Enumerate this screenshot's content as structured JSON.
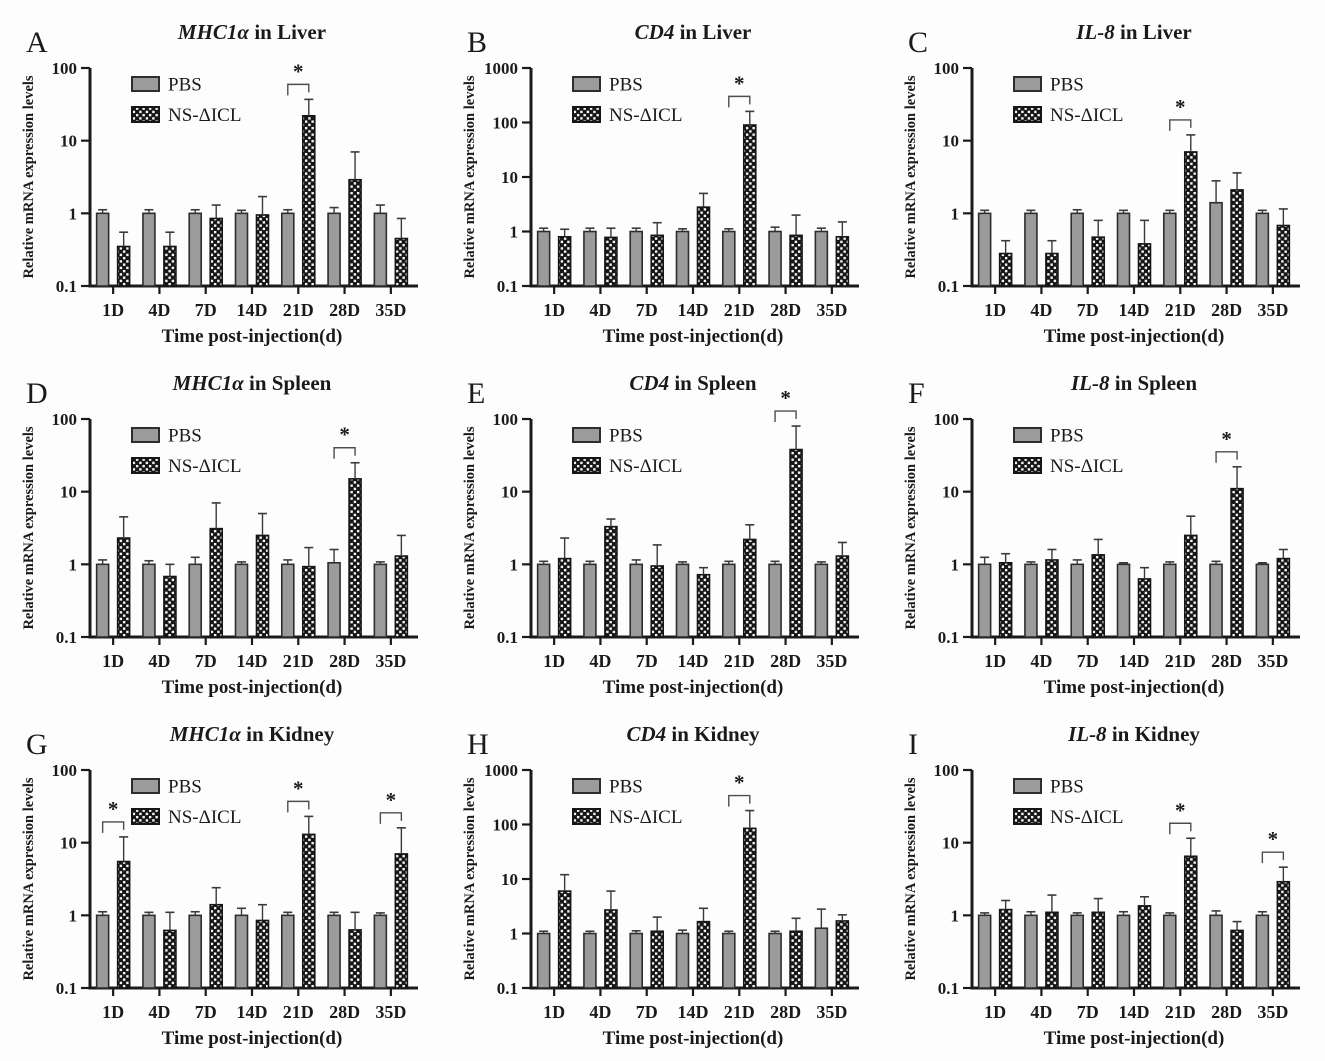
{
  "page": {
    "background": "#fdfdfd"
  },
  "colors": {
    "pbs_fill": "#9b9b9b",
    "pbs_stroke": "#2d2d2d",
    "ns_fill": "#161616",
    "ns_dot": "#f5f5f5",
    "axis": "#1a1a1a",
    "error_bar": "#3a3a3a",
    "sig": "#4d4d4d"
  },
  "chart_defaults": {
    "xlabel": "Time post-injection(d)",
    "ylabel": "Relative mRNA expression levels",
    "categories": [
      "1D",
      "4D",
      "7D",
      "14D",
      "21D",
      "28D",
      "35D"
    ],
    "legend": [
      "PBS",
      "NS-ΔICL"
    ],
    "sig_symbol": "*",
    "grid": "off",
    "legend_position": "upper-left-inside"
  },
  "chart_data": [
    {
      "panel": "A",
      "type": "bar",
      "gene": "MHC1α",
      "title_rest": " in Liver",
      "title": "MHC1α in Liver",
      "ylim": [
        0.1,
        100
      ],
      "yticks": [
        "0.1",
        "1",
        "10",
        "100"
      ],
      "series": [
        {
          "name": "PBS",
          "values": [
            1,
            1,
            1,
            1,
            1,
            1,
            1
          ],
          "error_upper": [
            1.12,
            1.12,
            1.12,
            1.1,
            1.12,
            1.2,
            1.3
          ]
        },
        {
          "name": "NS-ΔICL",
          "values": [
            0.35,
            0.35,
            0.85,
            0.95,
            22,
            2.9,
            0.45
          ],
          "error_upper": [
            0.55,
            0.55,
            1.3,
            1.7,
            37,
            7,
            0.85
          ]
        }
      ],
      "significant": [
        "21D"
      ]
    },
    {
      "panel": "B",
      "type": "bar",
      "gene": "CD4",
      "title_rest": " in Liver",
      "title": "CD4 in Liver",
      "ylim": [
        0.1,
        1000
      ],
      "yticks": [
        "0.1",
        "1",
        "10",
        "100",
        "1000"
      ],
      "series": [
        {
          "name": "PBS",
          "values": [
            1,
            1,
            1,
            1,
            1,
            1,
            1
          ],
          "error_upper": [
            1.15,
            1.15,
            1.15,
            1.12,
            1.12,
            1.2,
            1.15
          ]
        },
        {
          "name": "NS-ΔICL",
          "values": [
            0.8,
            0.78,
            0.85,
            2.8,
            90,
            0.85,
            0.8
          ],
          "error_upper": [
            1.1,
            1.15,
            1.45,
            5,
            160,
            2,
            1.5
          ]
        }
      ],
      "significant": [
        "21D"
      ]
    },
    {
      "panel": "C",
      "type": "bar",
      "gene": "IL-8",
      "title_rest": " in Liver",
      "title": "IL-8 in Liver",
      "ylim": [
        0.1,
        100
      ],
      "yticks": [
        "0.1",
        "1",
        "10",
        "100"
      ],
      "series": [
        {
          "name": "PBS",
          "values": [
            1,
            1,
            1,
            1,
            1,
            1.4,
            1
          ],
          "error_upper": [
            1.1,
            1.1,
            1.12,
            1.1,
            1.1,
            2.8,
            1.1
          ]
        },
        {
          "name": "NS-ΔICL",
          "values": [
            0.28,
            0.28,
            0.47,
            0.38,
            7,
            2.1,
            0.68
          ],
          "error_upper": [
            0.42,
            0.42,
            0.8,
            0.8,
            12,
            3.6,
            1.15
          ]
        }
      ],
      "significant": [
        "21D"
      ]
    },
    {
      "panel": "D",
      "type": "bar",
      "gene": "MHC1α",
      "title_rest": " in Spleen",
      "title": "MHC1α in Spleen",
      "ylim": [
        0.1,
        100
      ],
      "yticks": [
        "0.1",
        "1",
        "10",
        "100"
      ],
      "series": [
        {
          "name": "PBS",
          "values": [
            1,
            1,
            1,
            1,
            1,
            1.05,
            1
          ],
          "error_upper": [
            1.15,
            1.12,
            1.25,
            1.08,
            1.15,
            1.6,
            1.08
          ]
        },
        {
          "name": "NS-ΔICL",
          "values": [
            2.3,
            0.68,
            3.1,
            2.5,
            0.93,
            15,
            1.3
          ],
          "error_upper": [
            4.5,
            1.0,
            7,
            5,
            1.7,
            25,
            2.5
          ]
        }
      ],
      "significant": [
        "28D"
      ]
    },
    {
      "panel": "E",
      "type": "bar",
      "gene": "CD4",
      "title_rest": " in Spleen",
      "title": "CD4 in Spleen",
      "ylim": [
        0.1,
        100
      ],
      "yticks": [
        "0.1",
        "1",
        "10",
        "100"
      ],
      "series": [
        {
          "name": "PBS",
          "values": [
            1,
            1,
            1,
            1,
            1,
            1,
            1
          ],
          "error_upper": [
            1.1,
            1.1,
            1.15,
            1.08,
            1.1,
            1.1,
            1.08
          ]
        },
        {
          "name": "NS-ΔICL",
          "values": [
            1.2,
            3.3,
            0.95,
            0.72,
            2.2,
            38,
            1.3
          ],
          "error_upper": [
            2.3,
            4.2,
            1.85,
            0.9,
            3.5,
            80,
            2.0
          ]
        }
      ],
      "significant": [
        "28D"
      ]
    },
    {
      "panel": "F",
      "type": "bar",
      "gene": "IL-8",
      "title_rest": " in Spleen",
      "title": "IL-8 in Spleen",
      "ylim": [
        0.1,
        100
      ],
      "yticks": [
        "0.1",
        "1",
        "10",
        "100"
      ],
      "series": [
        {
          "name": "PBS",
          "values": [
            1,
            1,
            1,
            1,
            1,
            1,
            1
          ],
          "error_upper": [
            1.25,
            1.08,
            1.15,
            1.05,
            1.08,
            1.1,
            1.05
          ]
        },
        {
          "name": "NS-ΔICL",
          "values": [
            1.05,
            1.15,
            1.35,
            0.63,
            2.5,
            11,
            1.2
          ],
          "error_upper": [
            1.4,
            1.6,
            2.2,
            0.9,
            4.6,
            22,
            1.6
          ]
        }
      ],
      "significant": [
        "28D"
      ]
    },
    {
      "panel": "G",
      "type": "bar",
      "gene": "MHC1α",
      "title_rest": " in Kidney",
      "title": "MHC1α in Kidney",
      "ylim": [
        0.1,
        100
      ],
      "yticks": [
        "0.1",
        "1",
        "10",
        "100"
      ],
      "series": [
        {
          "name": "PBS",
          "values": [
            1,
            1,
            1,
            1,
            1,
            1,
            1
          ],
          "error_upper": [
            1.12,
            1.1,
            1.12,
            1.25,
            1.1,
            1.1,
            1.08
          ]
        },
        {
          "name": "NS-ΔICL",
          "values": [
            5.5,
            0.62,
            1.4,
            0.85,
            13,
            0.63,
            7
          ],
          "error_upper": [
            12,
            1.1,
            2.4,
            1.4,
            23,
            1.1,
            16
          ]
        }
      ],
      "significant": [
        "1D",
        "21D",
        "35D"
      ]
    },
    {
      "panel": "H",
      "type": "bar",
      "gene": "CD4",
      "title_rest": " in Kidney",
      "title": "CD4 in Kidney",
      "ylim": [
        0.1,
        1000
      ],
      "yticks": [
        "0.1",
        "1",
        "10",
        "100",
        "1000"
      ],
      "series": [
        {
          "name": "PBS",
          "values": [
            1,
            1,
            1,
            1,
            1,
            1,
            1.25
          ],
          "error_upper": [
            1.1,
            1.1,
            1.12,
            1.15,
            1.1,
            1.1,
            2.8
          ]
        },
        {
          "name": "NS-ΔICL",
          "values": [
            6,
            2.7,
            1.1,
            1.65,
            85,
            1.1,
            1.7
          ],
          "error_upper": [
            12,
            6,
            2,
            2.9,
            180,
            1.9,
            2.2
          ]
        }
      ],
      "significant": [
        "21D"
      ]
    },
    {
      "panel": "I",
      "type": "bar",
      "gene": "IL-8",
      "title_rest": " in Kidney",
      "title": "IL-8 in Kidney",
      "ylim": [
        0.1,
        100
      ],
      "yticks": [
        "0.1",
        "1",
        "10",
        "100"
      ],
      "series": [
        {
          "name": "PBS",
          "values": [
            1,
            1,
            1,
            1,
            1,
            1,
            1
          ],
          "error_upper": [
            1.08,
            1.12,
            1.08,
            1.12,
            1.08,
            1.15,
            1.12
          ]
        },
        {
          "name": "NS-ΔICL",
          "values": [
            1.2,
            1.1,
            1.1,
            1.35,
            6.5,
            0.62,
            2.9
          ],
          "error_upper": [
            1.6,
            1.9,
            1.7,
            1.8,
            11.5,
            0.82,
            4.6
          ]
        }
      ],
      "significant": [
        "21D",
        "35D"
      ]
    }
  ]
}
